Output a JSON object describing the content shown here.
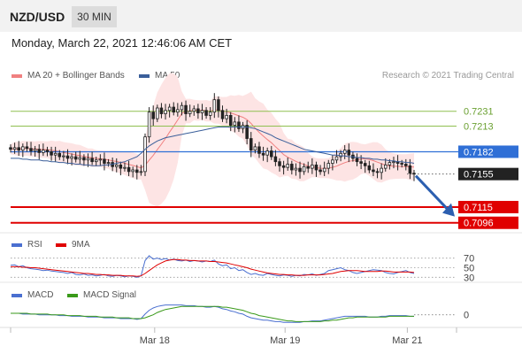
{
  "header": {
    "symbol": "NZD/USD",
    "timeframe": "30 MIN"
  },
  "date_text": "Monday, March 22, 2021 12:46:06 AM CET",
  "legend": {
    "ma20_label": "MA 20 + Bollinger Bands",
    "ma20_color": "#f08080",
    "ma50_label": "MA 50",
    "ma50_color": "#3a5f9a",
    "rsi_label": "RSI",
    "rsi_color": "#4a6fd0",
    "rsi9_label": "9MA",
    "rsi9_color": "#e00000",
    "macd_label": "MACD",
    "macd_color": "#4a6fd0",
    "macdsig_label": "MACD Signal",
    "macdsig_color": "#3a9a1a"
  },
  "credit": "Research © 2021 Trading Central",
  "chart_data": [
    {
      "type": "candlestick",
      "y_range": [
        0.7085,
        0.7265
      ],
      "x_labels": [
        "Mar 18",
        "Mar 19",
        "Mar 21"
      ],
      "levels": [
        {
          "value": 0.7231,
          "label": "0.7231",
          "kind": "resistance",
          "color": "#8fc050"
        },
        {
          "value": 0.7213,
          "label": "0.7213",
          "kind": "resistance",
          "color": "#8fc050"
        },
        {
          "value": 0.7182,
          "label": "0.7182",
          "kind": "pivot",
          "color": "#2f6fd6"
        },
        {
          "value": 0.7155,
          "label": "0.7155",
          "kind": "last-price",
          "color": "#222222"
        },
        {
          "value": 0.7115,
          "label": "0.7115",
          "kind": "support",
          "color": "#e00000"
        },
        {
          "value": 0.7096,
          "label": "0.7096",
          "kind": "support",
          "color": "#e00000"
        }
      ],
      "close": [
        0.7185,
        0.7187,
        0.7184,
        0.7188,
        0.7186,
        0.7183,
        0.7185,
        0.7181,
        0.7184,
        0.7182,
        0.7178,
        0.718,
        0.7176,
        0.7177,
        0.7174,
        0.7176,
        0.7173,
        0.7175,
        0.7172,
        0.7174,
        0.717,
        0.7172,
        0.7173,
        0.7168,
        0.7169,
        0.7164,
        0.7166,
        0.7162,
        0.7163,
        0.7158,
        0.716,
        0.7157,
        0.7158,
        0.72,
        0.723,
        0.7222,
        0.7235,
        0.7228,
        0.7232,
        0.7236,
        0.723,
        0.7233,
        0.7238,
        0.7228,
        0.7231,
        0.7234,
        0.7229,
        0.7232,
        0.7226,
        0.723,
        0.7245,
        0.7232,
        0.7222,
        0.7226,
        0.7214,
        0.7218,
        0.721,
        0.7214,
        0.7198,
        0.7184,
        0.7188,
        0.718,
        0.7178,
        0.7183,
        0.7176,
        0.717,
        0.7165,
        0.7163,
        0.7167,
        0.716,
        0.7162,
        0.7158,
        0.7164,
        0.7162,
        0.7166,
        0.716,
        0.7158,
        0.7162,
        0.7168,
        0.7172,
        0.7176,
        0.718,
        0.7184,
        0.7178,
        0.7174,
        0.717,
        0.7168,
        0.7165,
        0.716,
        0.7158,
        0.7157,
        0.7162,
        0.7166,
        0.7169,
        0.717,
        0.7168,
        0.7167,
        0.7165,
        0.7156,
        0.7155
      ],
      "ma50": [
        0.7174,
        0.7174,
        0.7174,
        0.7173,
        0.7173,
        0.7172,
        0.7172,
        0.7172,
        0.7171,
        0.7171,
        0.717,
        0.717,
        0.7169,
        0.7169,
        0.7168,
        0.7168,
        0.7167,
        0.7167,
        0.7166,
        0.7166,
        0.7165,
        0.7165,
        0.7165,
        0.7166,
        0.7166,
        0.7167,
        0.7168,
        0.7169,
        0.717,
        0.7172,
        0.7174,
        0.7176,
        0.718,
        0.7185,
        0.7189,
        0.7192,
        0.7195,
        0.7197,
        0.7199,
        0.72,
        0.7201,
        0.7202,
        0.7203,
        0.7204,
        0.7205,
        0.7206,
        0.7207,
        0.7208,
        0.7209,
        0.721,
        0.7211,
        0.7212,
        0.7212,
        0.7212,
        0.7212,
        0.7212,
        0.7212,
        0.7212,
        0.7212,
        0.7211,
        0.721,
        0.7208,
        0.7206,
        0.7204,
        0.7202,
        0.7199,
        0.7197,
        0.7195,
        0.7193,
        0.7191,
        0.7189,
        0.7187,
        0.7185,
        0.7184,
        0.7183,
        0.7182,
        0.7181,
        0.718,
        0.7179,
        0.7178,
        0.7178,
        0.7177,
        0.7177,
        0.7176,
        0.7176,
        0.7175,
        0.7175,
        0.7174,
        0.7174,
        0.7173,
        0.7173,
        0.7172,
        0.7172,
        0.7171,
        0.7171,
        0.717,
        0.717,
        0.7169,
        0.7169,
        0.7168
      ],
      "forecast_arrow": {
        "from": 0.7155,
        "to": 0.711
      }
    },
    {
      "type": "line",
      "name": "RSI",
      "levels": [
        70,
        50,
        30
      ],
      "y_range": [
        25,
        75
      ],
      "rsi": [
        55,
        56,
        52,
        54,
        50,
        48,
        47,
        46,
        44,
        45,
        43,
        42,
        41,
        40,
        38,
        40,
        36,
        35,
        37,
        34,
        35,
        33,
        34,
        36,
        33,
        32,
        34,
        33,
        31,
        33,
        32,
        30,
        33,
        65,
        75,
        68,
        70,
        67,
        69,
        66,
        68,
        65,
        64,
        66,
        63,
        65,
        64,
        62,
        64,
        63,
        66,
        58,
        54,
        56,
        48,
        50,
        44,
        46,
        40,
        36,
        38,
        35,
        34,
        38,
        36,
        34,
        33,
        35,
        34,
        32,
        34,
        33,
        36,
        35,
        37,
        34,
        36,
        38,
        44,
        46,
        48,
        50,
        46,
        44,
        40,
        38,
        40,
        42,
        44,
        46,
        45,
        44,
        40,
        38,
        37,
        40,
        42,
        44,
        40,
        38
      ],
      "ma9": [
        52,
        52,
        52,
        51,
        51,
        50,
        50,
        49,
        48,
        47,
        46,
        45,
        44,
        43,
        42,
        41,
        40,
        39,
        38,
        38,
        37,
        36,
        36,
        35,
        35,
        34,
        34,
        34,
        33,
        33,
        33,
        32,
        33,
        38,
        44,
        50,
        56,
        60,
        64,
        66,
        67,
        67,
        66,
        66,
        65,
        65,
        64,
        64,
        64,
        63,
        63,
        62,
        61,
        60,
        58,
        56,
        54,
        52,
        50,
        47,
        45,
        43,
        41,
        39,
        38,
        37,
        36,
        36,
        35,
        35,
        34,
        34,
        34,
        35,
        35,
        35,
        35,
        36,
        37,
        38,
        40,
        42,
        43,
        44,
        44,
        44,
        43,
        42,
        42,
        42,
        42,
        43,
        43,
        42,
        41,
        41,
        41,
        41,
        41,
        40
      ]
    },
    {
      "type": "line",
      "name": "MACD",
      "zero_label": "0",
      "y_range": [
        -0.0012,
        0.0016
      ],
      "macd": [
        0.0002,
        0.0002,
        0.0002,
        0.0001,
        0.0001,
        0.0001,
        0.0001,
        0.0,
        0.0,
        0.0,
        0.0,
        0.0,
        -0.0001,
        -0.0001,
        -0.0001,
        -0.0002,
        -0.0002,
        -0.0002,
        -0.0002,
        -0.0003,
        -0.0003,
        -0.0003,
        -0.0003,
        -0.0004,
        -0.0004,
        -0.0004,
        -0.0004,
        -0.0005,
        -0.0005,
        -0.0005,
        -0.0005,
        -0.0006,
        -0.0005,
        0.0001,
        0.0006,
        0.0009,
        0.0011,
        0.0012,
        0.0013,
        0.0013,
        0.0013,
        0.0013,
        0.0013,
        0.0012,
        0.0012,
        0.0012,
        0.0011,
        0.0011,
        0.001,
        0.001,
        0.0011,
        0.001,
        0.0008,
        0.0007,
        0.0005,
        0.0004,
        0.0002,
        0.0001,
        -0.0002,
        -0.0004,
        -0.0005,
        -0.0006,
        -0.0007,
        -0.0007,
        -0.0008,
        -0.0009,
        -0.0009,
        -0.001,
        -0.001,
        -0.001,
        -0.001,
        -0.001,
        -0.0009,
        -0.0009,
        -0.0008,
        -0.0008,
        -0.0008,
        -0.0007,
        -0.0006,
        -0.0005,
        -0.0004,
        -0.0003,
        -0.0002,
        -0.0002,
        -0.0002,
        -0.0002,
        -0.0002,
        -0.0002,
        -0.0003,
        -0.0003,
        -0.0003,
        -0.0002,
        -0.0002,
        -0.0001,
        -0.0001,
        -0.0001,
        -0.0001,
        -0.0001,
        -0.0002,
        -0.0002
      ],
      "signal": [
        0.0002,
        0.0002,
        0.0002,
        0.0002,
        0.0002,
        0.0001,
        0.0001,
        0.0001,
        0.0001,
        0.0001,
        0.0,
        0.0,
        0.0,
        0.0,
        -0.0001,
        -0.0001,
        -0.0001,
        -0.0001,
        -0.0002,
        -0.0002,
        -0.0002,
        -0.0002,
        -0.0003,
        -0.0003,
        -0.0003,
        -0.0003,
        -0.0004,
        -0.0004,
        -0.0004,
        -0.0004,
        -0.0005,
        -0.0005,
        -0.0005,
        -0.0004,
        -0.0002,
        0.0,
        0.0003,
        0.0005,
        0.0007,
        0.0008,
        0.0009,
        0.001,
        0.0011,
        0.0011,
        0.0011,
        0.0011,
        0.0011,
        0.0011,
        0.0011,
        0.0011,
        0.0011,
        0.0011,
        0.001,
        0.001,
        0.0009,
        0.0008,
        0.0007,
        0.0006,
        0.0004,
        0.0002,
        0.0001,
        -0.0001,
        -0.0002,
        -0.0003,
        -0.0004,
        -0.0005,
        -0.0006,
        -0.0007,
        -0.0008,
        -0.0008,
        -0.0009,
        -0.0009,
        -0.0009,
        -0.0009,
        -0.0009,
        -0.0009,
        -0.0009,
        -0.0008,
        -0.0008,
        -0.0007,
        -0.0007,
        -0.0006,
        -0.0005,
        -0.0004,
        -0.0004,
        -0.0003,
        -0.0003,
        -0.0003,
        -0.0003,
        -0.0003,
        -0.0003,
        -0.0003,
        -0.0003,
        -0.0002,
        -0.0002,
        -0.0002,
        -0.0002,
        -0.0002,
        -0.0002,
        -0.0002
      ]
    }
  ]
}
